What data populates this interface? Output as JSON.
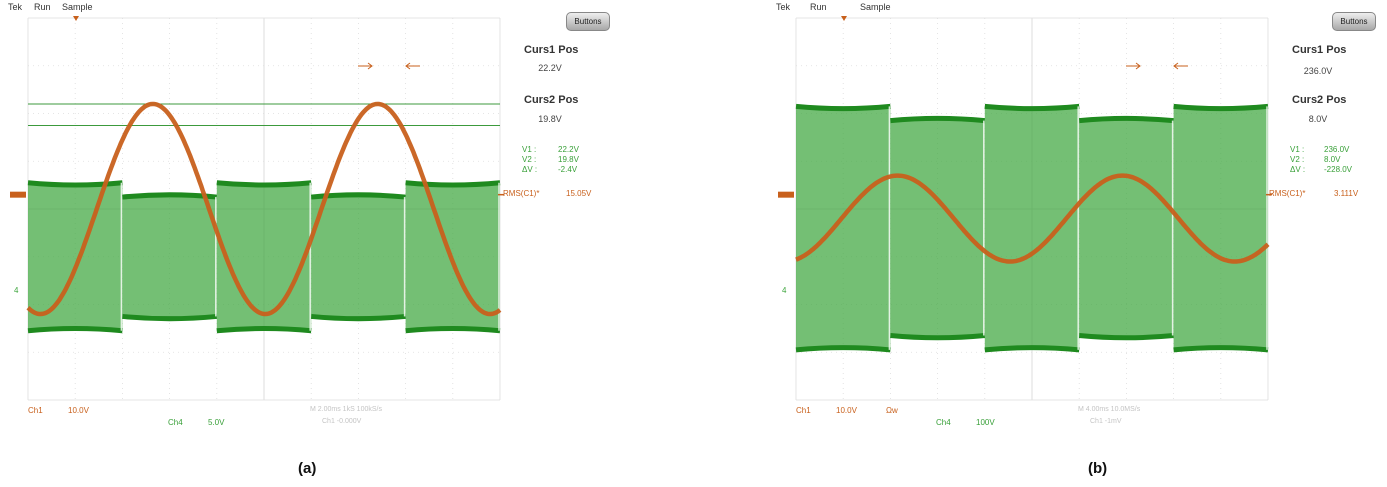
{
  "panels": [
    {
      "caption": "(a)",
      "menu": [
        "Tek",
        "Run",
        "Sample"
      ],
      "buttons_label": "Buttons",
      "curs1": {
        "label": "Curs1 Pos",
        "value": "22.2V"
      },
      "curs2": {
        "label": "Curs2 Pos",
        "value": "19.8V"
      },
      "readouts": [
        {
          "label": "V1 :",
          "value": "22.2V"
        },
        {
          "label": "V2 :",
          "value": "19.8V"
        },
        {
          "label": "ΔV :",
          "value": "-2.4V"
        }
      ],
      "measurement": {
        "label": "RMS(C1)*",
        "value": "15.05V"
      },
      "ch1": {
        "label": "Ch1",
        "scale": "10.0V"
      },
      "ch4": {
        "label": "Ch4",
        "scale": "5.0V"
      },
      "extra_flag": "",
      "timebase_faint": "M 2.00ms  1kS 100kS/s",
      "trigger_faint": "Ch1 -0.000V",
      "ch1_faint": "Ch1"
    },
    {
      "caption": "(b)",
      "menu": [
        "Tek",
        "Run",
        "Sample"
      ],
      "buttons_label": "Buttons",
      "curs1": {
        "label": "Curs1 Pos",
        "value": "236.0V"
      },
      "curs2": {
        "label": "Curs2 Pos",
        "value": "8.0V"
      },
      "readouts": [
        {
          "label": "V1 :",
          "value": "236.0V"
        },
        {
          "label": "V2 :",
          "value": "8.0V"
        },
        {
          "label": "ΔV :",
          "value": "-228.0V"
        }
      ],
      "measurement": {
        "label": "RMS(C1)*",
        "value": "3.111V"
      },
      "ch1": {
        "label": "Ch1",
        "scale": "10.0V"
      },
      "ch4": {
        "label": "Ch4",
        "scale": "100V"
      },
      "extra_flag": "Ωw",
      "timebase_faint": "M 4.00ms 10.0MS/s",
      "trigger_faint": "Ch1 -1mV",
      "ch1_faint": "Ch1"
    }
  ],
  "chart_data": [
    {
      "type": "line",
      "xlabel": "",
      "ylabel": "",
      "grid": true,
      "ylim_divisions": [
        -4,
        4
      ],
      "series": [
        {
          "name": "Ch1",
          "color": "#c8601c",
          "shape": "sine",
          "cycles_on_screen": 2.1,
          "amplitude_div": 2.2,
          "offset_div": 0.0
        },
        {
          "name": "Ch4",
          "color": "#3ea63e",
          "shape": "pwm-envelope",
          "top_div": 0.4,
          "bottom_div": -2.4,
          "segments": 5
        }
      ],
      "cursors_div": [
        2.2,
        1.75
      ]
    },
    {
      "type": "line",
      "xlabel": "",
      "ylabel": "",
      "grid": true,
      "ylim_divisions": [
        -4,
        4
      ],
      "series": [
        {
          "name": "Ch1",
          "color": "#c8601c",
          "shape": "sine",
          "cycles_on_screen": 2.1,
          "amplitude_div": 0.9,
          "offset_div": -0.2
        },
        {
          "name": "Ch4",
          "color": "#3ea63e",
          "shape": "pwm-envelope",
          "top_div": 2.0,
          "bottom_div": -2.8,
          "segments": 5
        }
      ]
    }
  ],
  "colors": {
    "grid": "#dddddd",
    "ch1": "#c8601c",
    "ch4": "#3ea63e",
    "cursor": "#3c9a3c"
  }
}
